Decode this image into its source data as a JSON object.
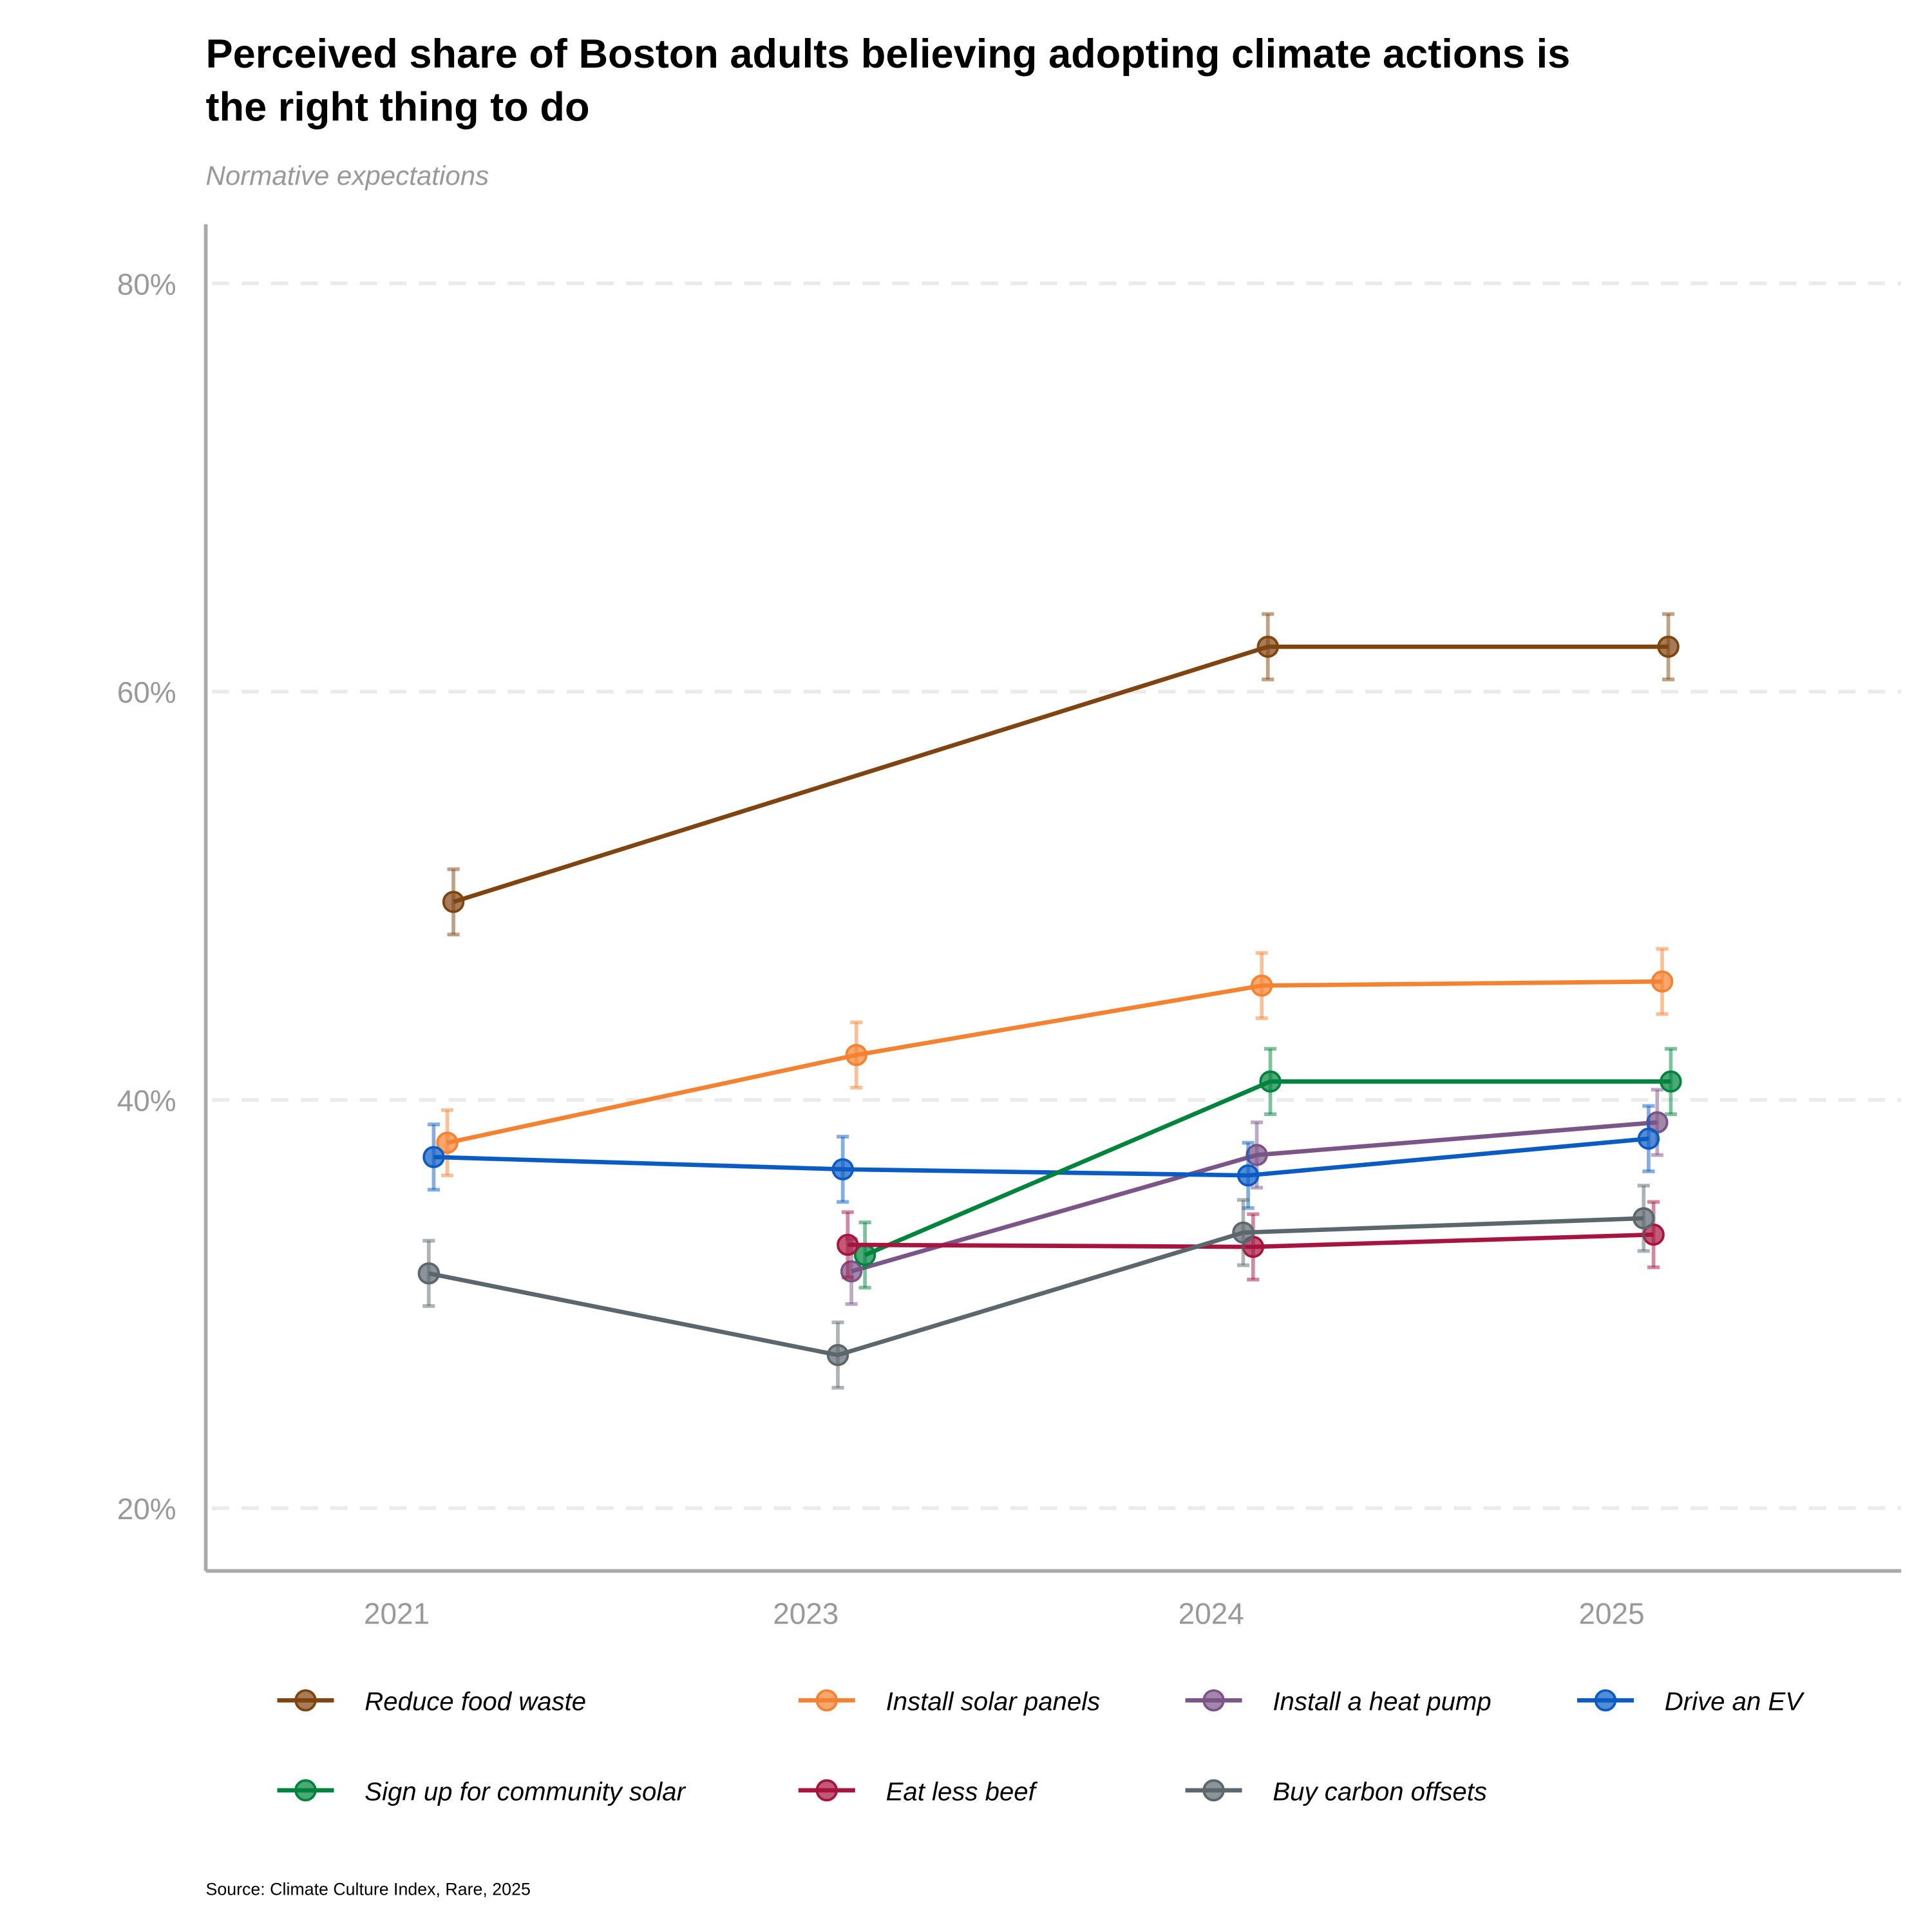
{
  "chart_data": {
    "type": "line",
    "title_lines": [
      "Perceived share of Boston adults believing adopting climate actions is",
      "the right thing to do"
    ],
    "subtitle": "Normative expectations",
    "caption": "Source: Climate Culture Index, Rare, 2025",
    "xlabel": "",
    "ylabel": "",
    "categories": [
      "2021",
      "2023",
      "2024",
      "2025"
    ],
    "ylim": [
      17,
      83
    ],
    "yticks": [
      20,
      40,
      60,
      80
    ],
    "ytick_labels": [
      "20%",
      "40%",
      "60%",
      "80%"
    ],
    "grid": "horizontal dashed",
    "legend_position": "bottom",
    "error_margin": 1.6,
    "series": [
      {
        "name": "Reduce food waste",
        "color": "#7f4410",
        "values": [
          49.7,
          null,
          62.2,
          62.2
        ]
      },
      {
        "name": "Install solar panels",
        "color": "#f58231",
        "values": [
          37.9,
          42.2,
          45.6,
          45.8
        ]
      },
      {
        "name": "Install a heat pump",
        "color": "#7b5488",
        "values": [
          null,
          31.6,
          37.3,
          38.9
        ]
      },
      {
        "name": "Drive an EV",
        "color": "#0a5bc4",
        "values": [
          37.2,
          36.6,
          36.3,
          38.1
        ]
      },
      {
        "name": "Sign up for community solar",
        "color": "#00843d",
        "values": [
          null,
          32.4,
          40.9,
          40.9
        ]
      },
      {
        "name": "Eat less beef",
        "color": "#a6143f",
        "values": [
          null,
          32.9,
          32.8,
          33.4
        ]
      },
      {
        "name": "Buy carbon offsets",
        "color": "#5b676d",
        "values": [
          31.5,
          27.5,
          33.5,
          34.2
        ]
      }
    ]
  }
}
